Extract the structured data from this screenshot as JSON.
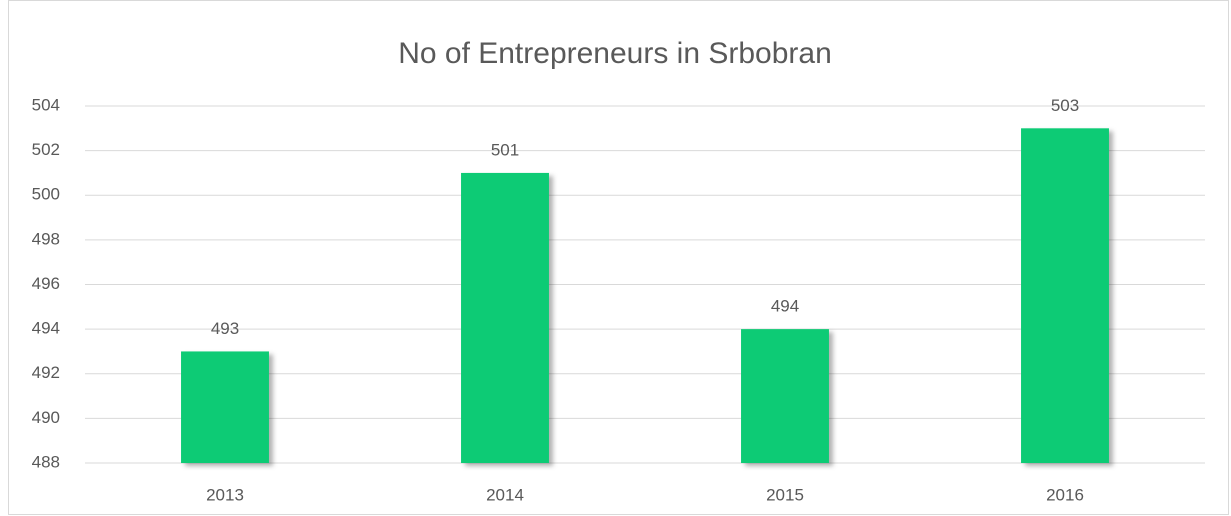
{
  "chart_data": {
    "type": "bar",
    "title": "No of Entrepreneurs in Srbobran",
    "categories": [
      "2013",
      "2014",
      "2015",
      "2016"
    ],
    "values": [
      493,
      501,
      494,
      503
    ],
    "color": "#0dcb75",
    "ylim": [
      488,
      504
    ],
    "yticks": [
      488,
      490,
      492,
      494,
      496,
      498,
      500,
      502,
      504
    ],
    "grid": true
  }
}
